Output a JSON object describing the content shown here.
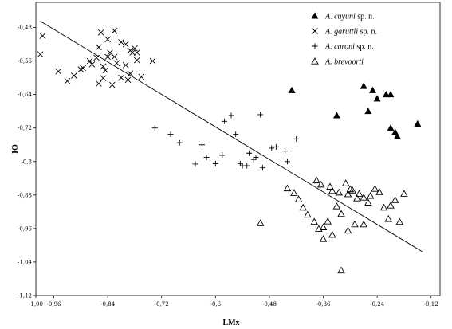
{
  "chart_data": {
    "type": "scatter",
    "xlabel": "LMx",
    "ylabel": "IO",
    "xlim": [
      -1.0,
      -0.1
    ],
    "ylim": [
      -1.12,
      -0.42
    ],
    "x_ticks": [
      {
        "v": -1.0,
        "label": "-1,00"
      },
      {
        "v": -0.96,
        "label": "-0,96"
      },
      {
        "v": -0.84,
        "label": "-0,84"
      },
      {
        "v": -0.72,
        "label": "-0,72"
      },
      {
        "v": -0.6,
        "label": "-0,6"
      },
      {
        "v": -0.48,
        "label": "-0,48"
      },
      {
        "v": -0.36,
        "label": "-0,36"
      },
      {
        "v": -0.24,
        "label": "-0,24"
      },
      {
        "v": -0.12,
        "label": "-0,12"
      }
    ],
    "y_ticks": [
      {
        "v": -0.48,
        "label": "-0,48"
      },
      {
        "v": -0.56,
        "label": "-0,56"
      },
      {
        "v": -0.64,
        "label": "-0,64"
      },
      {
        "v": -0.72,
        "label": "-0,72"
      },
      {
        "v": -0.8,
        "label": "-0,8"
      },
      {
        "v": -0.88,
        "label": "-0,88"
      },
      {
        "v": -0.96,
        "label": "-0,96"
      },
      {
        "v": -1.04,
        "label": "-1,04"
      },
      {
        "v": -1.12,
        "label": "-1,12"
      }
    ],
    "regression_line": {
      "x": [
        -0.99,
        -0.14
      ],
      "y": [
        -0.465,
        -1.015
      ]
    },
    "legend": {
      "placement": "top-right",
      "entries": [
        {
          "series": 0,
          "italic": "A. cuyuni",
          "rest": " sp. n."
        },
        {
          "series": 1,
          "italic": "A. garuttii",
          "rest": " sp. n."
        },
        {
          "series": 2,
          "italic": "A. caroni",
          "rest": " sp. n."
        },
        {
          "series": 3,
          "italic": "A. brevoorti",
          "rest": ""
        }
      ]
    },
    "series": [
      {
        "name": "A. cuyuni sp. n.",
        "marker": "filled-triangle",
        "points": [
          [
            -0.43,
            -0.63
          ],
          [
            -0.33,
            -0.69
          ],
          [
            -0.27,
            -0.62
          ],
          [
            -0.25,
            -0.63
          ],
          [
            -0.24,
            -0.65
          ],
          [
            -0.22,
            -0.64
          ],
          [
            -0.21,
            -0.64
          ],
          [
            -0.26,
            -0.68
          ],
          [
            -0.21,
            -0.72
          ],
          [
            -0.2,
            -0.73
          ],
          [
            -0.195,
            -0.74
          ],
          [
            -0.15,
            -0.71
          ]
        ]
      },
      {
        "name": "A. garuttii sp. n.",
        "marker": "cross-x",
        "points": [
          [
            -0.985,
            -0.5
          ],
          [
            -0.99,
            -0.544
          ],
          [
            -0.95,
            -0.585
          ],
          [
            -0.93,
            -0.608
          ],
          [
            -0.915,
            -0.595
          ],
          [
            -0.9,
            -0.58
          ],
          [
            -0.895,
            -0.577
          ],
          [
            -0.88,
            -0.56
          ],
          [
            -0.875,
            -0.568
          ],
          [
            -0.865,
            -0.552
          ],
          [
            -0.86,
            -0.527
          ],
          [
            -0.85,
            -0.573
          ],
          [
            -0.845,
            -0.582
          ],
          [
            -0.84,
            -0.55
          ],
          [
            -0.835,
            -0.54
          ],
          [
            -0.825,
            -0.55
          ],
          [
            -0.82,
            -0.565
          ],
          [
            -0.8,
            -0.57
          ],
          [
            -0.79,
            -0.59
          ],
          [
            -0.775,
            -0.558
          ],
          [
            -0.765,
            -0.598
          ],
          [
            -0.855,
            -0.492
          ],
          [
            -0.84,
            -0.508
          ],
          [
            -0.825,
            -0.488
          ],
          [
            -0.81,
            -0.515
          ],
          [
            -0.8,
            -0.52
          ],
          [
            -0.79,
            -0.535
          ],
          [
            -0.78,
            -0.53
          ],
          [
            -0.785,
            -0.54
          ],
          [
            -0.775,
            -0.54
          ],
          [
            -0.74,
            -0.56
          ],
          [
            -0.86,
            -0.614
          ],
          [
            -0.85,
            -0.601
          ],
          [
            -0.83,
            -0.617
          ],
          [
            -0.81,
            -0.6
          ],
          [
            -0.795,
            -0.605
          ]
        ]
      },
      {
        "name": "A. caroni sp. n.",
        "marker": "plus",
        "points": [
          [
            -0.735,
            -0.72
          ],
          [
            -0.7,
            -0.735
          ],
          [
            -0.68,
            -0.755
          ],
          [
            -0.645,
            -0.806
          ],
          [
            -0.63,
            -0.76
          ],
          [
            -0.62,
            -0.79
          ],
          [
            -0.6,
            -0.805
          ],
          [
            -0.585,
            -0.785
          ],
          [
            -0.58,
            -0.704
          ],
          [
            -0.565,
            -0.69
          ],
          [
            -0.555,
            -0.735
          ],
          [
            -0.545,
            -0.805
          ],
          [
            -0.54,
            -0.81
          ],
          [
            -0.53,
            -0.81
          ],
          [
            -0.525,
            -0.78
          ],
          [
            -0.515,
            -0.795
          ],
          [
            -0.51,
            -0.79
          ],
          [
            -0.5,
            -0.688
          ],
          [
            -0.495,
            -0.815
          ],
          [
            -0.475,
            -0.768
          ],
          [
            -0.465,
            -0.765
          ],
          [
            -0.445,
            -0.775
          ],
          [
            -0.42,
            -0.746
          ],
          [
            -0.44,
            -0.8
          ]
        ]
      },
      {
        "name": "A. brevoorti",
        "marker": "open-triangle",
        "points": [
          [
            -0.375,
            -0.845
          ],
          [
            -0.365,
            -0.855
          ],
          [
            -0.345,
            -0.86
          ],
          [
            -0.34,
            -0.87
          ],
          [
            -0.325,
            -0.874
          ],
          [
            -0.31,
            -0.852
          ],
          [
            -0.305,
            -0.878
          ],
          [
            -0.3,
            -0.866
          ],
          [
            -0.295,
            -0.869
          ],
          [
            -0.285,
            -0.888
          ],
          [
            -0.28,
            -0.877
          ],
          [
            -0.27,
            -0.886
          ],
          [
            -0.26,
            -0.898
          ],
          [
            -0.255,
            -0.882
          ],
          [
            -0.245,
            -0.865
          ],
          [
            -0.235,
            -0.873
          ],
          [
            -0.225,
            -0.91
          ],
          [
            -0.215,
            -0.937
          ],
          [
            -0.21,
            -0.905
          ],
          [
            -0.2,
            -0.892
          ],
          [
            -0.19,
            -0.944
          ],
          [
            -0.18,
            -0.877
          ],
          [
            -0.33,
            -0.907
          ],
          [
            -0.32,
            -0.925
          ],
          [
            -0.35,
            -0.943
          ],
          [
            -0.36,
            -0.957
          ],
          [
            -0.37,
            -0.961
          ],
          [
            -0.38,
            -0.944
          ],
          [
            -0.395,
            -0.927
          ],
          [
            -0.405,
            -0.91
          ],
          [
            -0.415,
            -0.89
          ],
          [
            -0.425,
            -0.875
          ],
          [
            -0.44,
            -0.864
          ],
          [
            -0.34,
            -0.975
          ],
          [
            -0.32,
            -1.06
          ],
          [
            -0.305,
            -0.965
          ],
          [
            -0.29,
            -0.95
          ],
          [
            -0.27,
            -0.95
          ],
          [
            -0.5,
            -0.947
          ],
          [
            -0.36,
            -0.985
          ]
        ]
      }
    ]
  }
}
